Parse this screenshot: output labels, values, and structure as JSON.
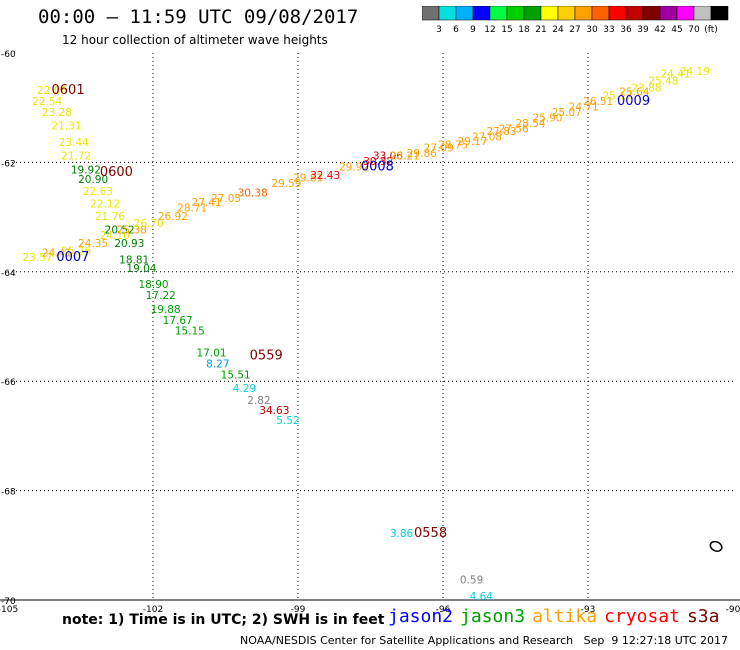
{
  "header": {
    "title": "00:00 – 11:59 UTC 09/08/2017",
    "subtitle": "12 hour collection of altimeter wave heights"
  },
  "colorbar": {
    "colors": [
      "#707070",
      "#00e0e0",
      "#00b0ff",
      "#0000ff",
      "#00ff40",
      "#00d000",
      "#00a000",
      "#ffff00",
      "#ffd000",
      "#ffa000",
      "#ff6000",
      "#ff0000",
      "#c00000",
      "#800000",
      "#a000a0",
      "#ff00ff",
      "#c0c0c0",
      "#000000"
    ],
    "labels": [
      "3",
      "6",
      "9",
      "12",
      "15",
      "18",
      "21",
      "24",
      "27",
      "30",
      "33",
      "36",
      "39",
      "42",
      "45",
      "70",
      "(ft)"
    ]
  },
  "map": {
    "lon_range": [
      -105,
      -90
    ],
    "lat_range": [
      -70,
      -60
    ],
    "lon_ticks": [
      "-105",
      "-102",
      "-99",
      "-96",
      "-93",
      "-90"
    ],
    "lat_ticks": [
      "-60",
      "-62",
      "-64",
      "-66",
      "-68",
      "-70"
    ]
  },
  "wave_labels": [
    {
      "lon": -104.4,
      "lat": -60.75,
      "text": "22.06",
      "color": "#e8e800"
    },
    {
      "lon": -104.5,
      "lat": -60.95,
      "text": "22.54",
      "color": "#e8e800"
    },
    {
      "lon": -104.3,
      "lat": -61.15,
      "text": "23.28",
      "color": "#e8e800"
    },
    {
      "lon": -104.1,
      "lat": -61.4,
      "text": "21.31",
      "color": "#e8e800"
    },
    {
      "lon": -103.95,
      "lat": -61.7,
      "text": "23.44",
      "color": "#e8e800"
    },
    {
      "lon": -103.9,
      "lat": -61.95,
      "text": "21.72",
      "color": "#e8e800"
    },
    {
      "lon": -103.7,
      "lat": -62.2,
      "text": "19.92",
      "color": "#008000"
    },
    {
      "lon": -103.55,
      "lat": -62.38,
      "text": "20.90",
      "color": "#008000"
    },
    {
      "lon": -103.45,
      "lat": -62.6,
      "text": "22.63",
      "color": "#e8e800"
    },
    {
      "lon": -103.3,
      "lat": -62.82,
      "text": "22.12",
      "color": "#e8e800"
    },
    {
      "lon": -103.2,
      "lat": -63.05,
      "text": "21.76",
      "color": "#e8e800"
    },
    {
      "lon": -103.0,
      "lat": -63.3,
      "text": "20.52",
      "color": "#008000"
    },
    {
      "lon": -102.8,
      "lat": -63.55,
      "text": "20.93",
      "color": "#008000"
    },
    {
      "lon": -102.7,
      "lat": -63.85,
      "text": "18.81",
      "color": "#008000"
    },
    {
      "lon": -102.55,
      "lat": -64.0,
      "text": "19.04",
      "color": "#008000"
    },
    {
      "lon": -102.3,
      "lat": -64.3,
      "text": "18.90",
      "color": "#00a000"
    },
    {
      "lon": -102.15,
      "lat": -64.5,
      "text": "17.22",
      "color": "#00a000"
    },
    {
      "lon": -102.05,
      "lat": -64.75,
      "text": "19.88",
      "color": "#00a000"
    },
    {
      "lon": -101.8,
      "lat": -64.95,
      "text": "17.67",
      "color": "#00a000"
    },
    {
      "lon": -101.55,
      "lat": -65.15,
      "text": "15.15",
      "color": "#00a000"
    },
    {
      "lon": -101.1,
      "lat": -65.55,
      "text": "17.01",
      "color": "#00a000"
    },
    {
      "lon": -100.9,
      "lat": -65.75,
      "text": "8.27",
      "color": "#00a0e0"
    },
    {
      "lon": -100.6,
      "lat": -65.95,
      "text": "15.51",
      "color": "#00a000"
    },
    {
      "lon": -100.35,
      "lat": -66.2,
      "text": "4.29",
      "color": "#00d0e0"
    },
    {
      "lon": -100.05,
      "lat": -66.42,
      "text": "2.82",
      "color": "#808080"
    },
    {
      "lon": -99.8,
      "lat": -66.6,
      "text": "34.63",
      "color": "#c00000"
    },
    {
      "lon": -99.45,
      "lat": -66.78,
      "text": "5.52",
      "color": "#00d0e0"
    },
    {
      "lon": -97.1,
      "lat": -68.85,
      "text": "3.86",
      "color": "#00d0e0"
    },
    {
      "lon": -95.65,
      "lat": -69.7,
      "text": "0.59",
      "color": "#808080"
    },
    {
      "lon": -95.45,
      "lat": -70.0,
      "text": "4.64",
      "color": "#00d0e0"
    },
    {
      "lon": -104.7,
      "lat": -63.8,
      "text": "23.57",
      "color": "#e8e800"
    },
    {
      "lon": -104.3,
      "lat": -63.72,
      "text": "24.41",
      "color": "#ffa000"
    },
    {
      "lon": -103.9,
      "lat": -63.68,
      "text": "25.26",
      "color": "#e8e800"
    },
    {
      "lon": -103.55,
      "lat": -63.55,
      "text": "24.35",
      "color": "#ffa000"
    },
    {
      "lon": -103.1,
      "lat": -63.4,
      "text": "24.10",
      "color": "#e8e800"
    },
    {
      "lon": -102.75,
      "lat": -63.3,
      "text": "25.38",
      "color": "#ffa000"
    },
    {
      "lon": -102.4,
      "lat": -63.18,
      "text": "26.70",
      "color": "#e8e800"
    },
    {
      "lon": -101.9,
      "lat": -63.05,
      "text": "26.92",
      "color": "#ffa000"
    },
    {
      "lon": -101.5,
      "lat": -62.9,
      "text": "28.71",
      "color": "#ffa000"
    },
    {
      "lon": -101.2,
      "lat": -62.8,
      "text": "27.41",
      "color": "#ffa000"
    },
    {
      "lon": -100.8,
      "lat": -62.72,
      "text": "27.05",
      "color": "#ffa000"
    },
    {
      "lon": -100.25,
      "lat": -62.62,
      "text": "30.38",
      "color": "#ff6000"
    },
    {
      "lon": -99.55,
      "lat": -62.45,
      "text": "29.59",
      "color": "#ffa000"
    },
    {
      "lon": -99.1,
      "lat": -62.35,
      "text": "29.81",
      "color": "#ffa000"
    },
    {
      "lon": -98.75,
      "lat": -62.3,
      "text": "32.43",
      "color": "#ff0000"
    },
    {
      "lon": -98.15,
      "lat": -62.15,
      "text": "29.92",
      "color": "#ffa000"
    },
    {
      "lon": -97.65,
      "lat": -62.05,
      "text": "30.32",
      "color": "#ff0000"
    },
    {
      "lon": -97.45,
      "lat": -61.95,
      "text": "33.06",
      "color": "#c00000"
    },
    {
      "lon": -97.1,
      "lat": -61.95,
      "text": "28.21",
      "color": "#ffa000"
    },
    {
      "lon": -96.75,
      "lat": -61.9,
      "text": "29.86",
      "color": "#ffa000"
    },
    {
      "lon": -96.4,
      "lat": -61.8,
      "text": "27.09",
      "color": "#ffa000"
    },
    {
      "lon": -96.1,
      "lat": -61.75,
      "text": "28.75",
      "color": "#ffa000"
    },
    {
      "lon": -95.7,
      "lat": -61.68,
      "text": "29.17",
      "color": "#ffa000"
    },
    {
      "lon": -95.4,
      "lat": -61.6,
      "text": "27.08",
      "color": "#ffa000"
    },
    {
      "lon": -95.1,
      "lat": -61.5,
      "text": "27.83",
      "color": "#ffa000"
    },
    {
      "lon": -94.85,
      "lat": -61.45,
      "text": "27.56",
      "color": "#ffa000"
    },
    {
      "lon": -94.5,
      "lat": -61.35,
      "text": "28.54",
      "color": "#ffa000"
    },
    {
      "lon": -94.15,
      "lat": -61.25,
      "text": "25.90",
      "color": "#ffa000"
    },
    {
      "lon": -93.75,
      "lat": -61.15,
      "text": "25.07",
      "color": "#ffa000"
    },
    {
      "lon": -93.4,
      "lat": -61.05,
      "text": "24.71",
      "color": "#ffa000"
    },
    {
      "lon": -93.1,
      "lat": -60.95,
      "text": "26.51",
      "color": "#ffa000"
    },
    {
      "lon": -92.7,
      "lat": -60.85,
      "text": "25.17",
      "color": "#e8e800"
    },
    {
      "lon": -92.35,
      "lat": -60.78,
      "text": "25.64",
      "color": "#ffa000"
    },
    {
      "lon": -92.1,
      "lat": -60.7,
      "text": "23.88",
      "color": "#e8e800"
    },
    {
      "lon": -91.75,
      "lat": -60.58,
      "text": "25.48",
      "color": "#e8e800"
    },
    {
      "lon": -91.5,
      "lat": -60.45,
      "text": "24.41",
      "color": "#e8e800"
    },
    {
      "lon": -91.1,
      "lat": -60.4,
      "text": "24.19",
      "color": "#e8e800"
    }
  ],
  "time_labels": [
    {
      "lon": -104.1,
      "lat": -60.75,
      "text": "0601",
      "color": "#800000"
    },
    {
      "lon": -103.1,
      "lat": -62.25,
      "text": "0600",
      "color": "#800000"
    },
    {
      "lon": -100.0,
      "lat": -65.6,
      "text": "0559",
      "color": "#800000"
    },
    {
      "lon": -96.6,
      "lat": -68.85,
      "text": "0558",
      "color": "#800000"
    },
    {
      "lon": -97.7,
      "lat": -62.15,
      "text": "0008",
      "color": "#0000c0"
    },
    {
      "lon": -104.0,
      "lat": -63.8,
      "text": "0007",
      "color": "#0000c0"
    },
    {
      "lon": -92.4,
      "lat": -60.95,
      "text": "0009",
      "color": "#0000c0"
    }
  ],
  "island": {
    "lon": -90.35,
    "lat": -69.02
  },
  "note": "note: 1) Time is in UTC; 2) SWH is in feet",
  "legend": [
    {
      "name": "jason2",
      "color": "#0000ff"
    },
    {
      "name": "jason3",
      "color": "#00a000"
    },
    {
      "name": "altika",
      "color": "#ffa000"
    },
    {
      "name": "cryosat",
      "color": "#ff0000"
    },
    {
      "name": "s3a",
      "color": "#800000"
    }
  ],
  "footer": "NOAA/NESDIS Center for Satellite Applications and Research   Sep  9 12:27:18 UTC 2017"
}
